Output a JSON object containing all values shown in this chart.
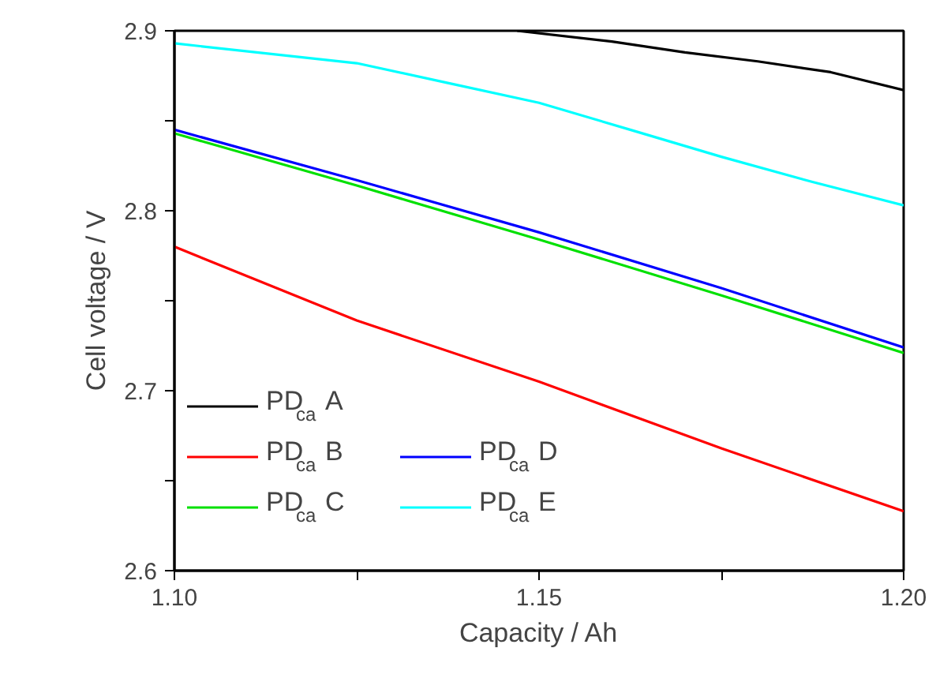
{
  "chart_data": {
    "type": "line",
    "xlabel": "Capacity / Ah",
    "ylabel": "Cell voltage / V",
    "xlim": [
      1.1,
      1.2
    ],
    "ylim": [
      2.6,
      2.9
    ],
    "xticks": [
      {
        "value": 1.1,
        "label": "1.10"
      },
      {
        "value": 1.125,
        "label": null
      },
      {
        "value": 1.15,
        "label": "1.15"
      },
      {
        "value": 1.175,
        "label": null
      },
      {
        "value": 1.2,
        "label": "1.20"
      }
    ],
    "yticks": [
      2.6,
      {
        "value": 2.65,
        "label": null
      },
      2.7,
      {
        "value": 2.75,
        "label": null
      },
      2.8,
      {
        "value": 2.85,
        "label": null
      },
      2.9
    ],
    "grid": false,
    "legend": "bottom left",
    "line_style": "solid",
    "marker": "none",
    "series": [
      {
        "name": "PD$_{ca}$ A",
        "color": "#000000",
        "x": [
          1.147,
          1.16,
          1.17,
          1.18,
          1.19,
          1.2
        ],
        "values": [
          2.9,
          2.894,
          2.888,
          2.883,
          2.877,
          2.867
        ]
      },
      {
        "name": "PD$_{ca}$ B",
        "color": "#ff0000",
        "x": [
          1.1,
          1.125,
          1.15,
          1.175,
          1.2
        ],
        "values": [
          2.78,
          2.739,
          2.705,
          2.668,
          2.633
        ]
      },
      {
        "name": "PD$_{ca}$ C",
        "color": "#00e000",
        "x": [
          1.1,
          1.125,
          1.15,
          1.175,
          1.2
        ],
        "values": [
          2.843,
          2.814,
          2.784,
          2.753,
          2.721
        ]
      },
      {
        "name": "PD$_{ca}$ D",
        "color": "#0000ff",
        "x": [
          1.1,
          1.125,
          1.15,
          1.175,
          1.2
        ],
        "values": [
          2.845,
          2.817,
          2.788,
          2.757,
          2.724
        ]
      },
      {
        "name": "PD$_{ca}$ E",
        "color": "#00ffff",
        "x": [
          1.1,
          1.125,
          1.1375,
          1.15,
          1.1625,
          1.175,
          1.1875,
          1.2
        ],
        "values": [
          2.893,
          2.882,
          2.871,
          2.86,
          2.845,
          2.83,
          2.816,
          2.803
        ]
      }
    ]
  }
}
